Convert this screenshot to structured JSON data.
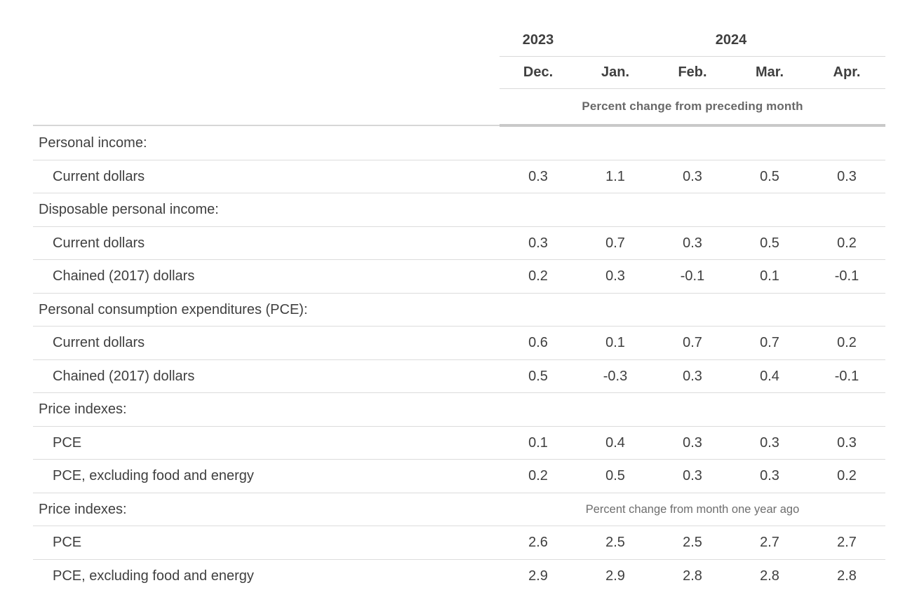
{
  "header": {
    "years": [
      {
        "label": "2023",
        "span_columns": 1
      },
      {
        "label": "2024",
        "span_columns": 4
      }
    ],
    "months": [
      "Dec.",
      "Jan.",
      "Feb.",
      "Mar.",
      "Apr."
    ],
    "unit_note": "Percent change from preceding month"
  },
  "rows": [
    {
      "type": "category",
      "label": "Personal income:"
    },
    {
      "type": "data",
      "label": "Current dollars",
      "values": [
        "0.3",
        "1.1",
        "0.3",
        "0.5",
        "0.3"
      ]
    },
    {
      "type": "category",
      "label": "Disposable personal income:"
    },
    {
      "type": "data",
      "label": "Current dollars",
      "values": [
        "0.3",
        "0.7",
        "0.3",
        "0.5",
        "0.2"
      ]
    },
    {
      "type": "data",
      "label": "Chained (2017) dollars",
      "values": [
        "0.2",
        "0.3",
        "-0.1",
        "0.1",
        "-0.1"
      ]
    },
    {
      "type": "category",
      "label": "Personal consumption expenditures (PCE):"
    },
    {
      "type": "data",
      "label": "Current dollars",
      "values": [
        "0.6",
        "0.1",
        "0.7",
        "0.7",
        "0.2"
      ]
    },
    {
      "type": "data",
      "label": "Chained (2017) dollars",
      "values": [
        "0.5",
        "-0.3",
        "0.3",
        "0.4",
        "-0.1"
      ]
    },
    {
      "type": "category",
      "label": "Price indexes:"
    },
    {
      "type": "data",
      "label": "PCE",
      "values": [
        "0.1",
        "0.4",
        "0.3",
        "0.3",
        "0.3"
      ]
    },
    {
      "type": "data",
      "label": "PCE, excluding food and energy",
      "values": [
        "0.2",
        "0.5",
        "0.3",
        "0.3",
        "0.2"
      ]
    },
    {
      "type": "category",
      "label": "Price indexes:",
      "note": "Percent change from month one year ago"
    },
    {
      "type": "data",
      "label": "PCE",
      "values": [
        "2.6",
        "2.5",
        "2.5",
        "2.7",
        "2.7"
      ]
    },
    {
      "type": "data",
      "label": "PCE, excluding food and energy",
      "values": [
        "2.9",
        "2.9",
        "2.8",
        "2.8",
        "2.8"
      ]
    }
  ],
  "colors": {
    "text": "#3f3f3f",
    "note_bold": "#696969",
    "note_regular": "#6e6e6e",
    "separator": "#dcdcdc",
    "header_underline": "#d9d9d9",
    "thick_rule": "#c9c9c9",
    "thin_rule": "#d6d6d6",
    "background": "#ffffff"
  }
}
